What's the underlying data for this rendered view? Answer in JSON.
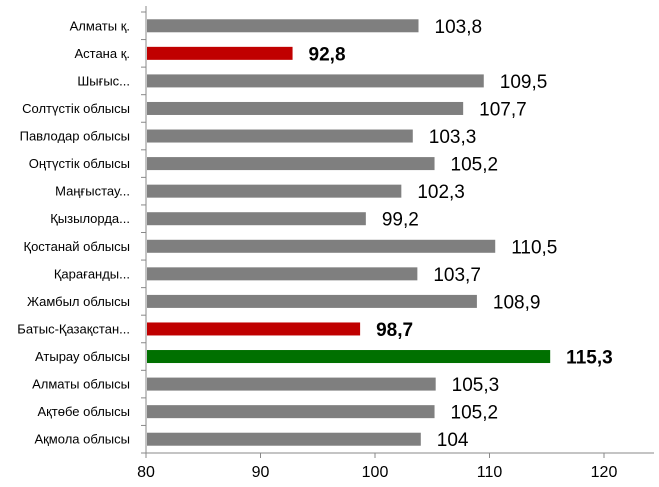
{
  "chart_data": {
    "type": "bar",
    "orientation": "horizontal",
    "categories": [
      "Алматы қ.",
      "Астана қ.",
      "Шығыс...",
      "Солтүстік облысы",
      "Павлодар облысы",
      "Оңтүстік облысы",
      "Маңғыстау...",
      "Қызылорда...",
      "Қостанай облысы",
      "Қарағанды...",
      "Жамбыл облысы",
      "Батыс-Қазақстан...",
      "Атырау облысы",
      "Алматы облысы",
      "Ақтөбе облысы",
      "Ақмола облысы"
    ],
    "values": [
      103.8,
      92.8,
      109.5,
      107.7,
      103.3,
      105.2,
      102.3,
      99.2,
      110.5,
      103.7,
      108.9,
      98.7,
      115.3,
      105.3,
      105.2,
      104
    ],
    "value_labels": [
      "103,8",
      "92,8",
      "109,5",
      "107,7",
      "103,3",
      "105,2",
      "102,3",
      "99,2",
      "110,5",
      "103,7",
      "108,9",
      "98,7",
      "115,3",
      "105,3",
      "105,2",
      "104"
    ],
    "bar_status": [
      "normal",
      "low",
      "normal",
      "normal",
      "normal",
      "normal",
      "normal",
      "normal",
      "normal",
      "normal",
      "normal",
      "low",
      "high",
      "normal",
      "normal",
      "normal"
    ],
    "xlim": [
      80,
      120
    ],
    "xticks": [
      80,
      90,
      100,
      110,
      120
    ],
    "xtick_labels": [
      "80",
      "90",
      "100",
      "110",
      "120"
    ],
    "grid": false,
    "legend": "none",
    "colors": {
      "normal": "#7f7f7f",
      "low": "#c00000",
      "high": "#007000",
      "low_label": "#c00000",
      "high_label": "#000000",
      "normal_label": "#000000",
      "axis": "#888888"
    }
  }
}
